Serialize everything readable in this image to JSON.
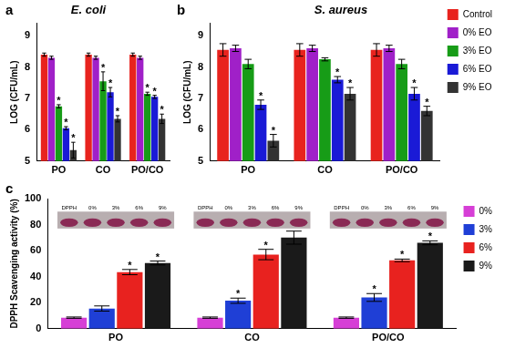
{
  "chart_data": [
    {
      "panel": "a",
      "type": "bar",
      "title": "E. coli",
      "y_label": "LOG (CFU/mL)",
      "categories": [
        "PO",
        "CO",
        "PO/CO"
      ],
      "ylim": [
        5,
        9.4
      ],
      "yticks": [
        5,
        6,
        7,
        8,
        9
      ],
      "grid": false,
      "series": [
        {
          "name": "Control",
          "color": "#e8231e",
          "values": [
            8.4,
            8.4,
            8.4
          ],
          "errors": [
            0.05,
            0.05,
            0.05
          ]
        },
        {
          "name": "0% EO",
          "color": "#a020c8",
          "values": [
            8.3,
            8.3,
            8.3
          ],
          "errors": [
            0.05,
            0.05,
            0.05
          ]
        },
        {
          "name": "3% EO",
          "color": "#179c17",
          "values": [
            6.75,
            7.55,
            7.15
          ],
          "errors": [
            0.05,
            0.3,
            0.05
          ],
          "annotations": [
            "*",
            "*",
            "*"
          ]
        },
        {
          "name": "6% EO",
          "color": "#1a1ad6",
          "values": [
            6.05,
            7.2,
            7.05
          ],
          "errors": [
            0.05,
            0.15,
            0.05
          ],
          "annotations": [
            "*",
            "*",
            "*"
          ]
        },
        {
          "name": "9% EO",
          "color": "#333333",
          "values": [
            5.35,
            6.35,
            6.35
          ],
          "errors": [
            0.25,
            0.1,
            0.15
          ],
          "annotations": [
            "*",
            "*",
            "*"
          ]
        }
      ]
    },
    {
      "panel": "b",
      "type": "bar",
      "title": "S. aureus",
      "y_label": "LOG (CFU/mL)",
      "categories": [
        "PO",
        "CO",
        "PO/CO"
      ],
      "ylim": [
        5,
        9.4
      ],
      "yticks": [
        5,
        6,
        7,
        8,
        9
      ],
      "grid": false,
      "legend": "right",
      "series": [
        {
          "name": "Control",
          "color": "#e8231e",
          "values": [
            8.55,
            8.55,
            8.55
          ],
          "errors": [
            0.2,
            0.2,
            0.2
          ]
        },
        {
          "name": "0% EO",
          "color": "#a020c8",
          "values": [
            8.6,
            8.6,
            8.6
          ],
          "errors": [
            0.1,
            0.1,
            0.1
          ]
        },
        {
          "name": "3% EO",
          "color": "#179c17",
          "values": [
            8.1,
            8.25,
            8.1
          ],
          "errors": [
            0.15,
            0.05,
            0.15
          ]
        },
        {
          "name": "6% EO",
          "color": "#1a1ad6",
          "values": [
            6.8,
            7.6,
            7.15
          ],
          "errors": [
            0.15,
            0.1,
            0.2
          ],
          "annotations": [
            "*",
            "*",
            "*"
          ]
        },
        {
          "name": "9% EO",
          "color": "#333333",
          "values": [
            5.65,
            7.15,
            6.6
          ],
          "errors": [
            0.2,
            0.2,
            0.15
          ],
          "annotations": [
            "*",
            "*",
            "*"
          ]
        }
      ]
    },
    {
      "panel": "c",
      "type": "bar",
      "y_label": "DPPH Scavenging activity (%)",
      "categories": [
        "PO",
        "CO",
        "PO/CO"
      ],
      "ylim": [
        0,
        100
      ],
      "yticks": [
        0,
        20,
        40,
        60,
        80,
        100
      ],
      "grid": false,
      "legend": "right",
      "inset_labels": [
        "DPPH",
        "0%",
        "3%",
        "6%",
        "9%"
      ],
      "series": [
        {
          "name": "0%",
          "color": "#d63fd6",
          "values": [
            8.5,
            8.5,
            8.5
          ],
          "errors": [
            0.5,
            0.5,
            0.5
          ]
        },
        {
          "name": "3%",
          "color": "#1f3fd6",
          "values": [
            15.5,
            21.5,
            24
          ],
          "errors": [
            2,
            2,
            3
          ],
          "annotations": [
            null,
            "*",
            "*"
          ]
        },
        {
          "name": "6%",
          "color": "#e8221f",
          "values": [
            43.5,
            57,
            52.5
          ],
          "errors": [
            2,
            4,
            1
          ],
          "annotations": [
            "*",
            "*",
            "*"
          ]
        },
        {
          "name": "9%",
          "color": "#1a1a1a",
          "values": [
            50.5,
            70,
            66
          ],
          "errors": [
            1.5,
            5,
            1.5
          ],
          "annotations": [
            "*",
            "*",
            "*"
          ]
        }
      ]
    }
  ]
}
